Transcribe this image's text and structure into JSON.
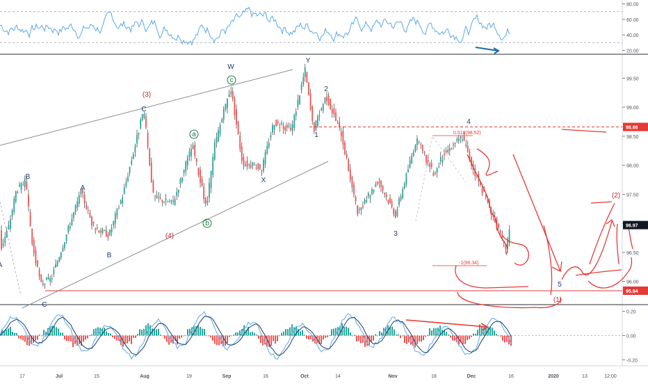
{
  "chart_data": [
    {
      "type": "line",
      "name": "rsi-oscillator",
      "y_ticks": [
        "80.00",
        "60.00",
        "40.00",
        "20.00"
      ],
      "ylim": [
        15,
        85
      ],
      "guide_levels": [
        70,
        30
      ],
      "line_color": "#5aa9e6"
    },
    {
      "type": "candlestick",
      "name": "price-chart",
      "ylim": [
        95.6,
        99.9
      ],
      "y_ticks": [
        "99.50",
        "99.00",
        "98.50",
        "98.00",
        "97.50",
        "97.00",
        "96.50",
        "96.00"
      ],
      "x_ticks": [
        "17",
        "Jul",
        "15",
        "Aug",
        "19",
        "Sep",
        "16",
        "Oct",
        "14",
        "Nov",
        "18",
        "Dec",
        "16",
        "2020",
        "13",
        "12:00"
      ],
      "x_ticks_bold": [
        "Jul",
        "Aug",
        "Sep",
        "Oct",
        "Nov",
        "Dec",
        "2020"
      ],
      "price_labels": [
        {
          "text": "98.66",
          "value": 98.66,
          "color": "#e53935"
        },
        {
          "text": "96.97",
          "value": 96.97,
          "color": "#131722"
        },
        {
          "text": "95.84",
          "value": 95.84,
          "color": "#e53935"
        }
      ],
      "colors": {
        "up": "#26a69a",
        "down": "#ef5350",
        "wick": "#131722"
      },
      "wave_labels": [
        {
          "text": "A",
          "color": "#1a3a6e"
        },
        {
          "text": "B",
          "color": "#1a3a6e"
        },
        {
          "text": "C",
          "color": "#1a3a6e"
        },
        {
          "text": "A",
          "color": "#1a3a6e"
        },
        {
          "text": "B",
          "color": "#1a3a6e"
        },
        {
          "text": "C",
          "color": "#1a3a6e"
        },
        {
          "text": "(3)",
          "color": "#c62828"
        },
        {
          "text": "(4)",
          "color": "#c62828"
        },
        {
          "text": "a",
          "color": "#1b7a3a",
          "circled": true
        },
        {
          "text": "b",
          "color": "#1b7a3a",
          "circled": true
        },
        {
          "text": "c",
          "color": "#1b7a3a",
          "circled": true
        },
        {
          "text": "W",
          "color": "#1a3a6e"
        },
        {
          "text": "X",
          "color": "#1a3a6e"
        },
        {
          "text": "Y",
          "color": "#1a3a6e"
        },
        {
          "text": "1",
          "color": "#1a3a6e"
        },
        {
          "text": "2",
          "color": "#1a3a6e"
        },
        {
          "text": "3",
          "color": "#1a3a6e"
        },
        {
          "text": "4",
          "color": "#1a3a6e"
        },
        {
          "text": "5",
          "color": "#1a3a6e"
        },
        {
          "text": "(1)",
          "color": "#c62828"
        },
        {
          "text": "(2)",
          "color": "#c62828"
        }
      ],
      "fib_annotations": [
        {
          "text": "0.618(98.52)",
          "color": "#e53935"
        },
        {
          "text": "-1(96.34)",
          "color": "#e53935"
        }
      ],
      "drawing_color": "#e53935"
    },
    {
      "type": "histogram",
      "name": "macd-oscillator",
      "y_ticks": [
        "0.20",
        "0.00",
        "-0.20"
      ],
      "ylim": [
        -0.25,
        0.25
      ],
      "colors": {
        "hist_up": "#26a69a",
        "hist_down": "#ef5350",
        "macd": "#5aa9e6",
        "signal": "#1a3a6e",
        "annotation": "#e53935"
      }
    }
  ]
}
